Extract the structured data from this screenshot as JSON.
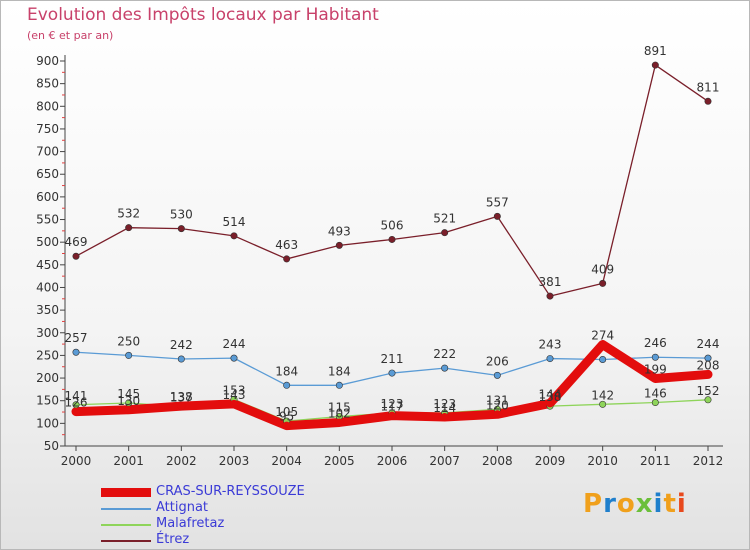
{
  "title": "Evolution des Impôts locaux par Habitant",
  "subtitle": "(en € et par an)",
  "logo": {
    "text": "Proxiti",
    "colors": [
      "#f0a01c",
      "#1f7fcc",
      "#f0a01c",
      "#6bbf3a",
      "#1f7fcc",
      "#f0a01c",
      "#e8491d"
    ]
  },
  "chart_data": {
    "type": "line",
    "title": "Evolution des Impôts locaux par Habitant",
    "subtitle": "(en € et par an)",
    "xlabel": "",
    "ylabel": "",
    "categories": [
      "2000",
      "2001",
      "2002",
      "2003",
      "2004",
      "2005",
      "2006",
      "2007",
      "2008",
      "2009",
      "2010",
      "2011",
      "2012"
    ],
    "ylim": [
      50,
      900
    ],
    "yticks": [
      50,
      100,
      150,
      200,
      250,
      300,
      350,
      400,
      450,
      500,
      550,
      600,
      650,
      700,
      750,
      800,
      850,
      900
    ],
    "grid": false,
    "legend_position": "bottom-left",
    "series": [
      {
        "name": "CRAS-SUR-REYSSOUZE",
        "color": "#e30d0d",
        "values": [
          126,
          130,
          138,
          143,
          95,
          102,
          117,
          114,
          120,
          144,
          274,
          199,
          208
        ],
        "labels": [
          "126",
          "130",
          "138",
          "143",
          "95",
          "102",
          "117",
          "114",
          "120",
          "144",
          "274",
          "199",
          "208"
        ]
      },
      {
        "name": "Attignat",
        "color": "#5a9bd5",
        "values": [
          257,
          250,
          242,
          244,
          184,
          184,
          211,
          222,
          206,
          243,
          241,
          246,
          244
        ],
        "labels": [
          "257",
          "250",
          "242",
          "244",
          "184",
          "184",
          "211",
          "222",
          "206",
          "243",
          "",
          "246",
          "244"
        ]
      },
      {
        "name": "Malafretaz",
        "color": "#8ed45a",
        "values": [
          141,
          145,
          137,
          153,
          105,
          115,
          123,
          123,
          131,
          138,
          142,
          146,
          152
        ],
        "labels": [
          "141",
          "145",
          "137",
          "153",
          "105",
          "115",
          "123",
          "123",
          "131",
          "138",
          "142",
          "146",
          "152"
        ]
      },
      {
        "name": "Étrez",
        "color": "#7a1f2a",
        "values": [
          469,
          532,
          530,
          514,
          463,
          493,
          506,
          521,
          557,
          381,
          409,
          891,
          811
        ],
        "labels": [
          "469",
          "532",
          "530",
          "514",
          "463",
          "493",
          "506",
          "521",
          "557",
          "381",
          "409",
          "891",
          "811"
        ]
      }
    ]
  }
}
